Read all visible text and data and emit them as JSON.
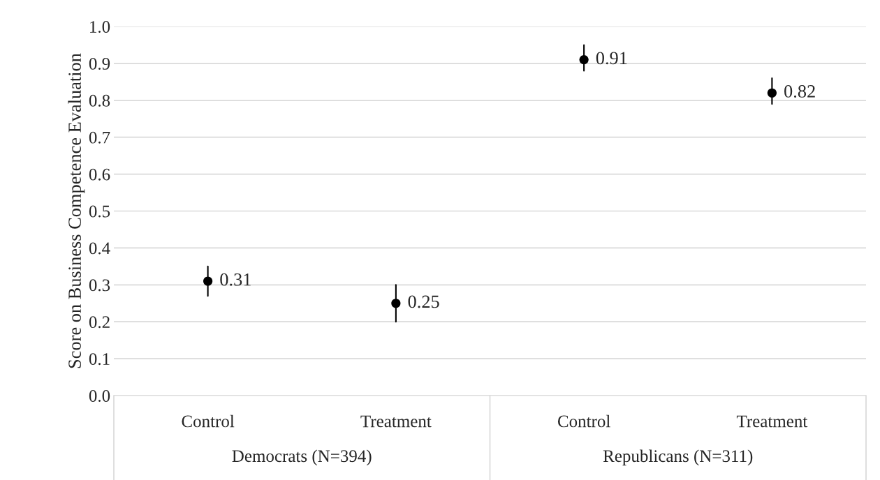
{
  "chart_data": {
    "type": "scatter",
    "ylabel": "Score on Business Competence Evaluation",
    "categories": [
      "Control",
      "Treatment",
      "Control",
      "Treatment"
    ],
    "annotations": [
      "Democrats (N=394)",
      "Republicans (N=311)"
    ],
    "series": [
      {
        "color": "#000000",
        "values": [
          0.31,
          0.25,
          0.91,
          0.82
        ],
        "errors": [
          [
            0.27,
            0.35
          ],
          [
            0.2,
            0.3
          ],
          [
            0.88,
            0.95
          ],
          [
            0.79,
            0.86
          ]
        ]
      }
    ],
    "ylim": [
      0,
      1
    ],
    "yticks": [
      {
        "value": 0,
        "label": "0.0"
      },
      {
        "value": 0.1,
        "label": "0.1"
      },
      {
        "value": 0.2,
        "label": "0.2"
      },
      {
        "value": 0.3,
        "label": "0.3"
      },
      {
        "value": 0.4,
        "label": "0.4"
      },
      {
        "value": 0.5,
        "label": "0.5"
      },
      {
        "value": 0.6,
        "label": "0.6"
      },
      {
        "value": 0.7,
        "label": "0.7"
      },
      {
        "value": 0.8,
        "label": "0.8"
      },
      {
        "value": 0.9,
        "label": "0.9"
      },
      {
        "value": 1,
        "label": "1.0"
      }
    ],
    "grid": "y",
    "marker": "circle",
    "data_labels": true
  }
}
